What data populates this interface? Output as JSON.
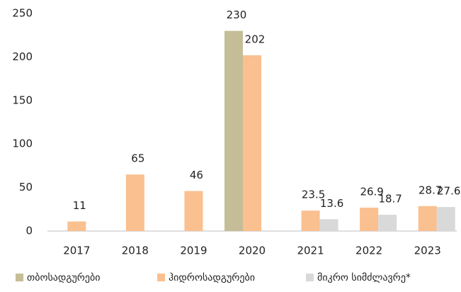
{
  "chart_data": {
    "type": "bar",
    "categories": [
      "2017",
      "2018",
      "2019",
      "2020",
      "2021",
      "2022",
      "2023"
    ],
    "series": [
      {
        "name": "თბოსადგურები",
        "color": "#c4bd97",
        "values": [
          null,
          null,
          null,
          230,
          null,
          null,
          null
        ]
      },
      {
        "name": "ჰიდროსადგურები",
        "color": "#fac090",
        "values": [
          11,
          65,
          46,
          202,
          23.5,
          26.9,
          28.7
        ]
      },
      {
        "name": "მიკრო სიმძლავრე*",
        "color": "#d9d9d9",
        "values": [
          null,
          null,
          null,
          null,
          13.6,
          18.7,
          27.6
        ]
      }
    ],
    "ylim": [
      0,
      250
    ],
    "yticks": [
      0,
      50,
      100,
      150,
      200,
      250
    ],
    "grid": false,
    "legend": "bottom"
  }
}
